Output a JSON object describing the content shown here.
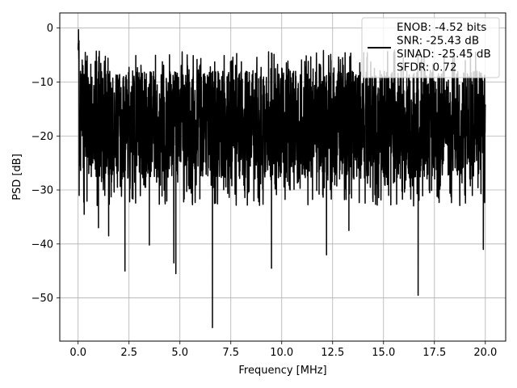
{
  "chart_data": {
    "type": "line",
    "title": "",
    "xlabel": "Frequency [MHz]",
    "ylabel": "PSD [dB]",
    "xlim": [
      -0.9,
      21.0
    ],
    "ylim": [
      -58.0,
      2.8
    ],
    "xticks": [
      0.0,
      2.5,
      5.0,
      7.5,
      10.0,
      12.5,
      15.0,
      17.5,
      20.0
    ],
    "xtick_labels": [
      "0.0",
      "2.5",
      "5.0",
      "7.5",
      "10.0",
      "12.5",
      "15.0",
      "17.5",
      "20.0"
    ],
    "yticks": [
      0,
      -10,
      -20,
      -30,
      -40,
      -50
    ],
    "ytick_labels": [
      "0",
      "−10",
      "−20",
      "−30",
      "−40",
      "−50"
    ],
    "grid": true,
    "legend": {
      "placement": "top-right",
      "lines": [
        "ENOB: -4.52 bits",
        "SNR: -25.43 dB",
        "SINAD: -25.45 dB",
        "SFDR: 0.72"
      ]
    },
    "series": [
      {
        "color": "#000000",
        "x_range": [
          0.0,
          20.0
        ],
        "typical_band_db": [
          -28.0,
          -8.0
        ],
        "peak_max_db": -0.3,
        "deep_dips": [
          {
            "x": 0.3,
            "y": -34.5
          },
          {
            "x": 1.0,
            "y": -37.0
          },
          {
            "x": 1.5,
            "y": -38.5
          },
          {
            "x": 2.3,
            "y": -45.0
          },
          {
            "x": 3.5,
            "y": -40.2
          },
          {
            "x": 4.7,
            "y": -43.5
          },
          {
            "x": 4.8,
            "y": -45.5
          },
          {
            "x": 6.6,
            "y": -55.5
          },
          {
            "x": 9.5,
            "y": -44.5
          },
          {
            "x": 12.2,
            "y": -42.0
          },
          {
            "x": 13.3,
            "y": -37.5
          },
          {
            "x": 16.7,
            "y": -49.5
          },
          {
            "x": 19.9,
            "y": -41.0
          }
        ]
      }
    ]
  }
}
